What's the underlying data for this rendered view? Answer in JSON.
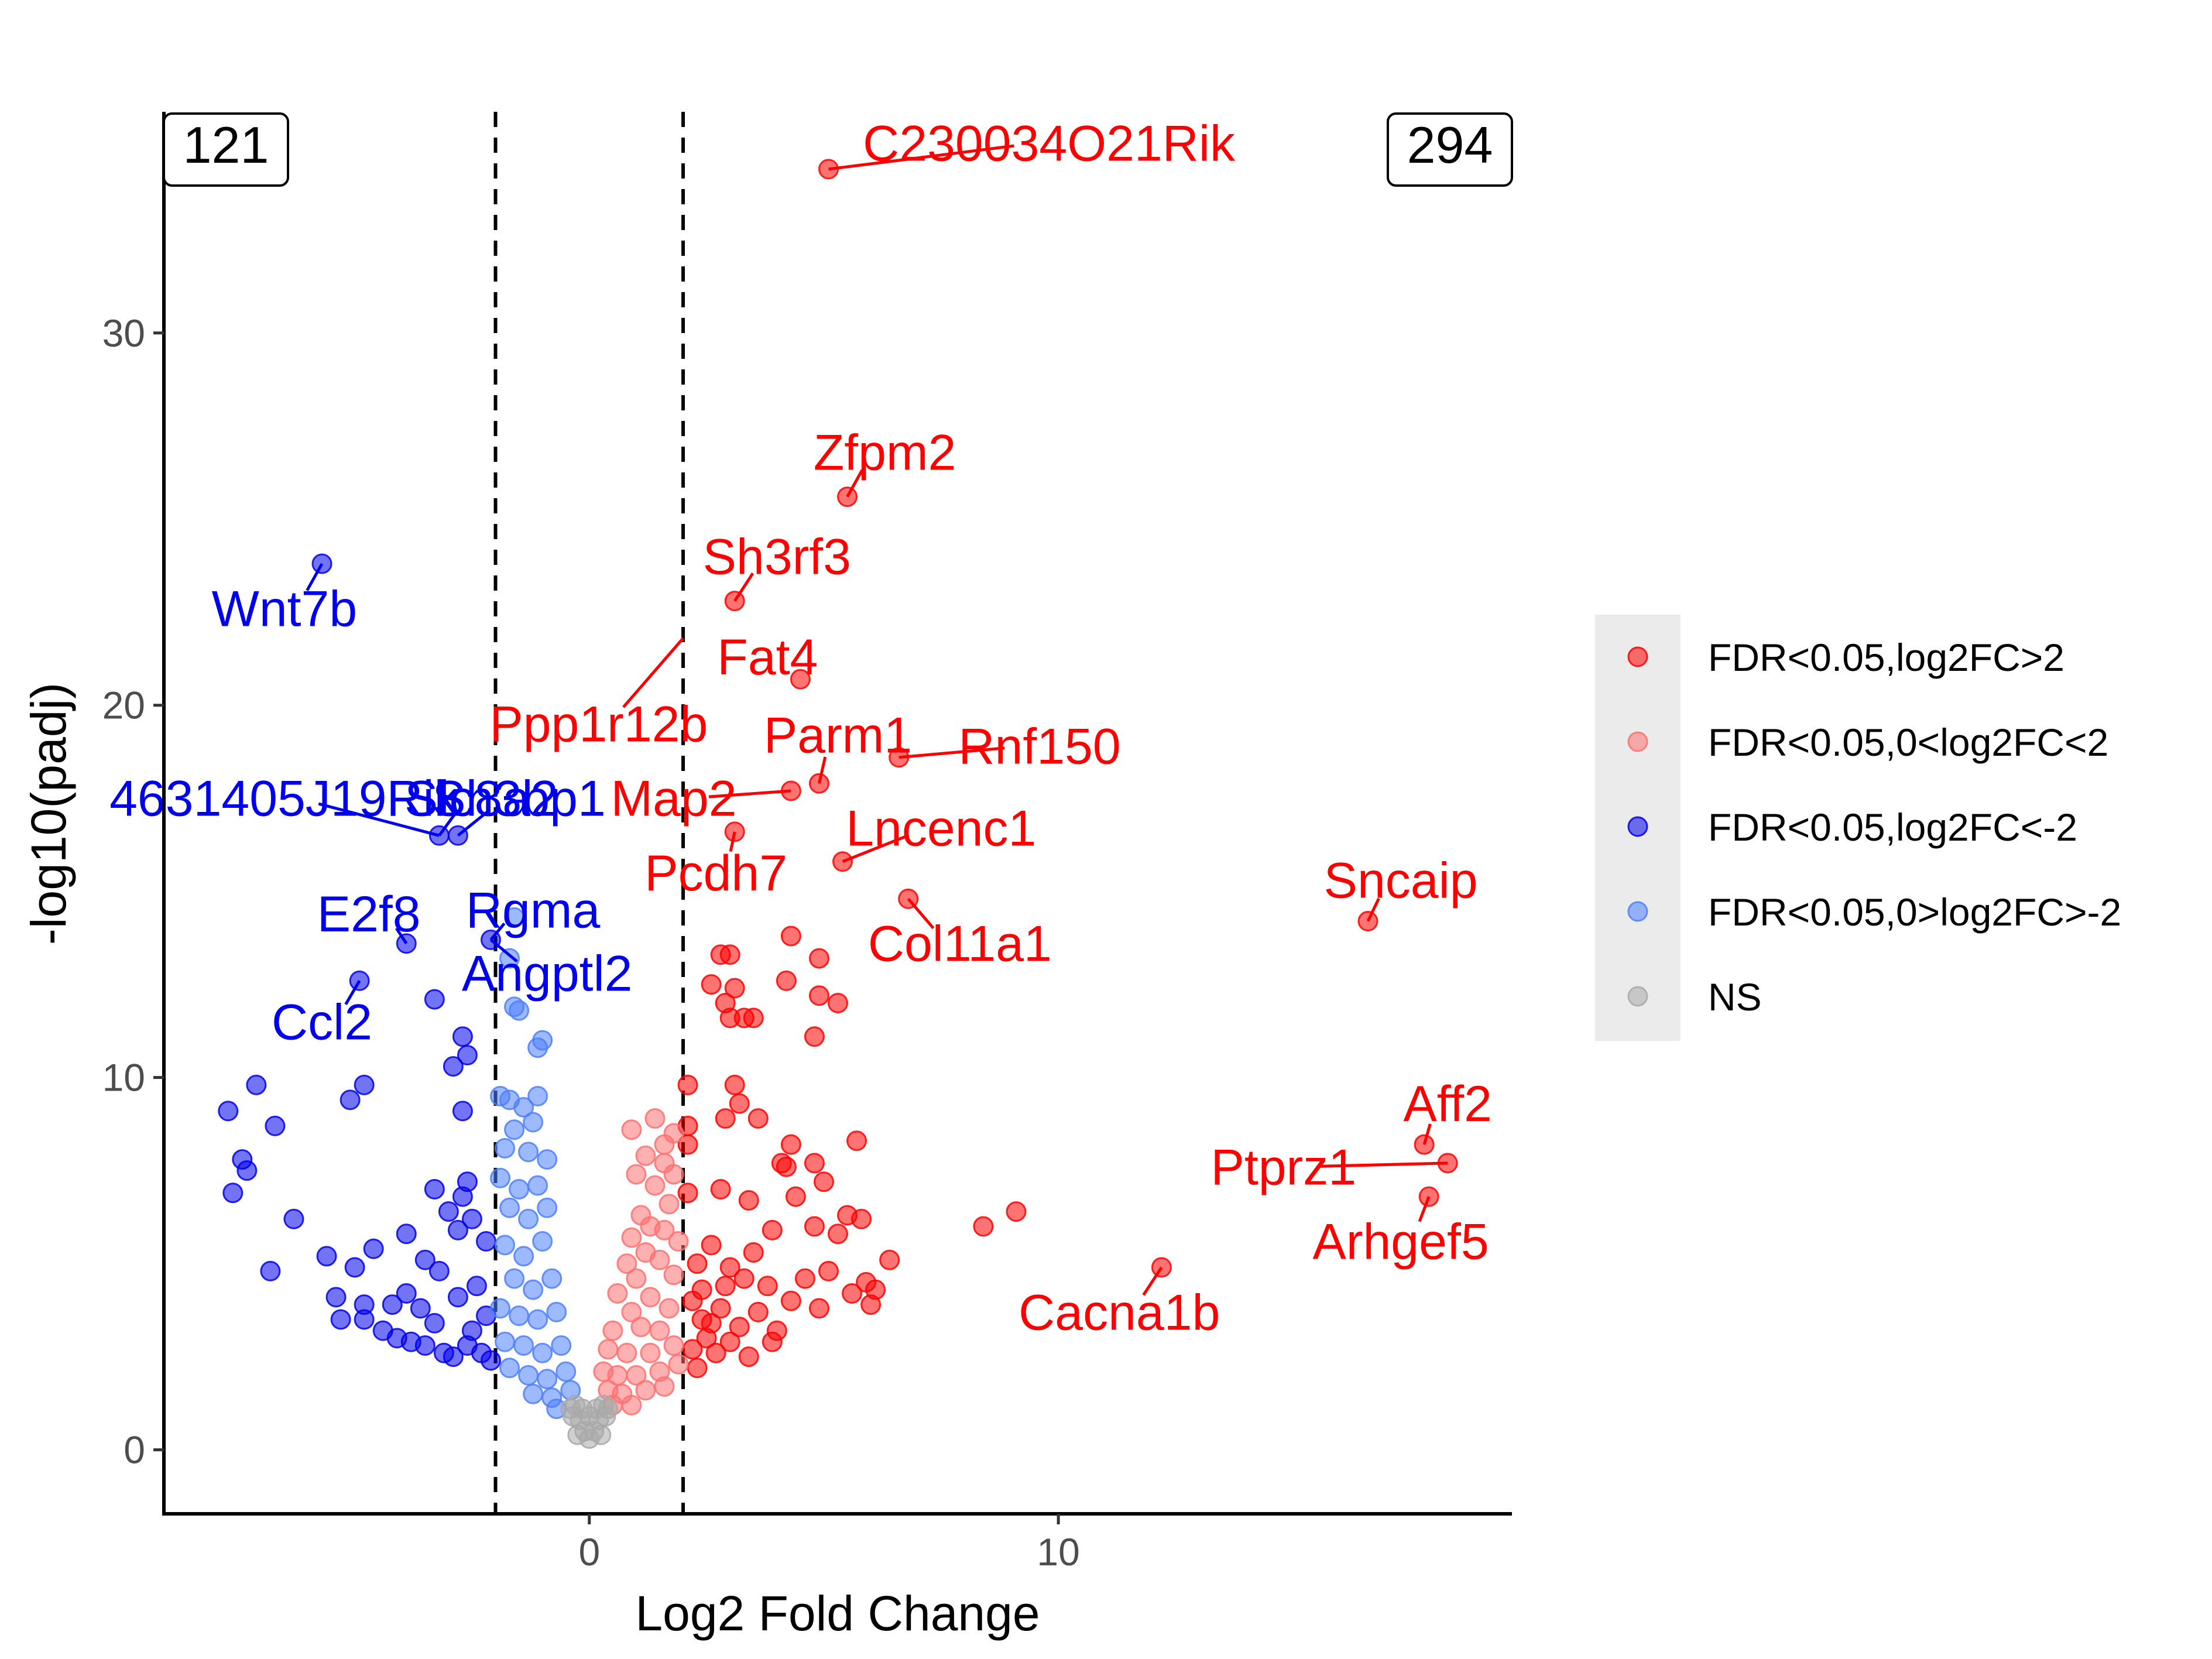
{
  "chart_data": {
    "type": "scatter",
    "xlabel": "Log2 Fold Change",
    "ylabel": "-log10(padj)",
    "xlim": [
      -9.07,
      19.67
    ],
    "ylim": [
      -1.72,
      35.94
    ],
    "x_ticks": [
      0,
      10
    ],
    "y_ticks": [
      0,
      10,
      20,
      30
    ],
    "threshold_lines_x": [
      -2,
      2
    ],
    "count_labels": {
      "down": "121",
      "up": "294"
    },
    "legend": {
      "position": "right",
      "items": [
        {
          "label": "FDR<0.05,log2FC>2",
          "color": "#ff0000"
        },
        {
          "label": "FDR<0.05,0<log2FC<2",
          "color": "#ff7070"
        },
        {
          "label": "FDR<0.05,log2FC<-2",
          "color": "#0000ee"
        },
        {
          "label": "FDR<0.05,0>log2FC>-2",
          "color": "#4d7fff"
        },
        {
          "label": "NS",
          "color": "#a9a9a9"
        }
      ]
    },
    "series": [
      {
        "name": "FDR<0.05,log2FC>2",
        "color": "#ff0000",
        "points": [
          [
            5.1,
            34.4
          ],
          [
            5.5,
            25.6
          ],
          [
            3.1,
            22.8
          ],
          [
            4.5,
            20.7
          ],
          [
            4.9,
            17.9
          ],
          [
            4.3,
            17.7
          ],
          [
            6.6,
            18.6
          ],
          [
            3.1,
            16.6
          ],
          [
            5.4,
            15.8
          ],
          [
            6.8,
            14.8
          ],
          [
            16.6,
            14.2
          ],
          [
            4.3,
            13.8
          ],
          [
            2.8,
            13.3
          ],
          [
            3.0,
            13.3
          ],
          [
            4.9,
            13.2
          ],
          [
            2.6,
            12.5
          ],
          [
            3.1,
            12.4
          ],
          [
            4.2,
            12.6
          ],
          [
            4.9,
            12.2
          ],
          [
            5.3,
            12.0
          ],
          [
            2.9,
            12.0
          ],
          [
            3.0,
            11.6
          ],
          [
            3.3,
            11.6
          ],
          [
            3.5,
            11.6
          ],
          [
            4.8,
            11.1
          ],
          [
            2.1,
            9.8
          ],
          [
            3.1,
            9.8
          ],
          [
            3.2,
            9.3
          ],
          [
            2.9,
            8.9
          ],
          [
            3.6,
            8.9
          ],
          [
            2.1,
            8.7
          ],
          [
            2.1,
            8.2
          ],
          [
            4.3,
            8.2
          ],
          [
            5.7,
            8.3
          ],
          [
            4.1,
            7.7
          ],
          [
            4.2,
            7.6
          ],
          [
            4.8,
            7.7
          ],
          [
            5.0,
            7.2
          ],
          [
            2.8,
            7.0
          ],
          [
            2.1,
            6.9
          ],
          [
            3.4,
            6.7
          ],
          [
            4.4,
            6.8
          ],
          [
            8.4,
            6.0
          ],
          [
            9.1,
            6.4
          ],
          [
            17.8,
            8.2
          ],
          [
            18.3,
            7.7
          ],
          [
            17.9,
            6.8
          ],
          [
            12.2,
            4.9
          ],
          [
            5.5,
            6.3
          ],
          [
            5.8,
            6.2
          ],
          [
            6.4,
            5.1
          ],
          [
            5.3,
            5.8
          ],
          [
            4.8,
            6.0
          ],
          [
            3.9,
            5.9
          ],
          [
            3.5,
            5.3
          ],
          [
            3.0,
            4.9
          ],
          [
            2.6,
            5.5
          ],
          [
            2.3,
            5.0
          ],
          [
            3.8,
            4.4
          ],
          [
            4.6,
            4.6
          ],
          [
            5.1,
            4.8
          ],
          [
            5.9,
            4.5
          ],
          [
            6.1,
            4.3
          ],
          [
            5.6,
            4.2
          ],
          [
            6.0,
            3.9
          ],
          [
            4.9,
            3.8
          ],
          [
            4.3,
            4.0
          ],
          [
            3.6,
            3.7
          ],
          [
            2.8,
            3.8
          ],
          [
            2.4,
            3.5
          ],
          [
            3.2,
            3.3
          ],
          [
            4.0,
            3.2
          ],
          [
            2.5,
            3.0
          ],
          [
            3.0,
            2.9
          ],
          [
            2.2,
            2.7
          ],
          [
            2.7,
            2.6
          ],
          [
            2.3,
            2.2
          ],
          [
            3.4,
            2.5
          ],
          [
            3.9,
            2.9
          ],
          [
            2.9,
            4.4
          ],
          [
            2.4,
            4.3
          ],
          [
            3.3,
            4.6
          ],
          [
            2.2,
            4.0
          ],
          [
            2.6,
            3.4
          ]
        ]
      },
      {
        "name": "FDR<0.05,0<log2FC<2",
        "color": "#ff7070",
        "points": [
          [
            1.4,
            8.9
          ],
          [
            1.8,
            8.5
          ],
          [
            1.6,
            7.7
          ],
          [
            1.8,
            7.4
          ],
          [
            1.0,
            7.4
          ],
          [
            1.4,
            7.1
          ],
          [
            1.7,
            6.6
          ],
          [
            1.1,
            6.3
          ],
          [
            1.3,
            6.0
          ],
          [
            1.6,
            5.9
          ],
          [
            0.9,
            5.7
          ],
          [
            1.2,
            5.3
          ],
          [
            1.5,
            5.1
          ],
          [
            0.8,
            5.0
          ],
          [
            1.0,
            4.6
          ],
          [
            1.8,
            4.7
          ],
          [
            0.6,
            4.2
          ],
          [
            1.3,
            4.1
          ],
          [
            0.9,
            3.7
          ],
          [
            1.7,
            3.8
          ],
          [
            0.5,
            3.2
          ],
          [
            1.1,
            3.3
          ],
          [
            1.5,
            3.2
          ],
          [
            0.4,
            2.7
          ],
          [
            0.8,
            2.6
          ],
          [
            1.3,
            2.6
          ],
          [
            1.8,
            2.8
          ],
          [
            0.3,
            2.1
          ],
          [
            0.6,
            2.0
          ],
          [
            1.0,
            2.0
          ],
          [
            1.5,
            2.1
          ],
          [
            1.9,
            2.3
          ],
          [
            0.4,
            1.6
          ],
          [
            0.7,
            1.5
          ],
          [
            1.2,
            1.6
          ],
          [
            1.6,
            1.7
          ],
          [
            0.5,
            1.2
          ],
          [
            0.9,
            1.2
          ],
          [
            1.9,
            5.6
          ],
          [
            1.2,
            7.9
          ],
          [
            0.9,
            8.6
          ],
          [
            1.6,
            8.2
          ]
        ]
      },
      {
        "name": "FDR<0.05,log2FC<-2",
        "color": "#0000ee",
        "points": [
          [
            -5.7,
            23.8
          ],
          [
            -3.2,
            16.5
          ],
          [
            -2.8,
            16.5
          ],
          [
            -3.9,
            13.6
          ],
          [
            -2.1,
            13.7
          ],
          [
            -4.9,
            12.6
          ],
          [
            -3.3,
            12.1
          ],
          [
            -2.7,
            11.1
          ],
          [
            -2.6,
            10.6
          ],
          [
            -2.9,
            10.3
          ],
          [
            -7.7,
            9.1
          ],
          [
            -7.1,
            9.8
          ],
          [
            -6.7,
            8.7
          ],
          [
            -5.1,
            9.4
          ],
          [
            -4.8,
            9.8
          ],
          [
            -2.7,
            9.1
          ],
          [
            -7.4,
            7.8
          ],
          [
            -7.3,
            7.5
          ],
          [
            -7.6,
            6.9
          ],
          [
            -6.3,
            6.2
          ],
          [
            -6.8,
            4.8
          ],
          [
            -5.6,
            5.2
          ],
          [
            -5.0,
            4.9
          ],
          [
            -5.4,
            4.1
          ],
          [
            -4.6,
            5.4
          ],
          [
            -3.9,
            5.8
          ],
          [
            -3.5,
            5.1
          ],
          [
            -3.2,
            4.8
          ],
          [
            -2.8,
            5.9
          ],
          [
            -2.5,
            6.2
          ],
          [
            -2.2,
            5.6
          ],
          [
            -2.7,
            6.8
          ],
          [
            -3.3,
            7.0
          ],
          [
            -2.6,
            7.2
          ],
          [
            -3.0,
            6.4
          ],
          [
            -5.3,
            3.5
          ],
          [
            -4.8,
            3.5
          ],
          [
            -4.8,
            3.9
          ],
          [
            -4.4,
            3.2
          ],
          [
            -4.1,
            3.0
          ],
          [
            -3.8,
            2.9
          ],
          [
            -3.6,
            3.8
          ],
          [
            -3.3,
            3.4
          ],
          [
            -3.1,
            2.6
          ],
          [
            -2.9,
            2.5
          ],
          [
            -2.6,
            2.8
          ],
          [
            -2.3,
            2.6
          ],
          [
            -2.1,
            2.4
          ],
          [
            -3.5,
            2.8
          ],
          [
            -2.4,
            4.4
          ],
          [
            -2.2,
            3.6
          ],
          [
            -2.8,
            4.1
          ],
          [
            -3.9,
            4.2
          ],
          [
            -4.2,
            3.9
          ],
          [
            -2.5,
            3.2
          ]
        ]
      },
      {
        "name": "FDR<0.05,0>log2FC>-2",
        "color": "#4d7fff",
        "points": [
          [
            -1.6,
            14.3
          ],
          [
            -1.7,
            13.2
          ],
          [
            -1.6,
            11.9
          ],
          [
            -1.5,
            11.8
          ],
          [
            -1.0,
            11.0
          ],
          [
            -1.1,
            10.8
          ],
          [
            -1.9,
            9.5
          ],
          [
            -1.7,
            9.4
          ],
          [
            -1.1,
            9.5
          ],
          [
            -1.2,
            8.8
          ],
          [
            -1.8,
            8.1
          ],
          [
            -1.3,
            8.0
          ],
          [
            -1.9,
            7.3
          ],
          [
            -1.5,
            7.0
          ],
          [
            -1.1,
            7.1
          ],
          [
            -1.7,
            6.5
          ],
          [
            -1.3,
            6.2
          ],
          [
            -0.9,
            6.5
          ],
          [
            -1.8,
            5.5
          ],
          [
            -1.4,
            5.2
          ],
          [
            -1.0,
            5.6
          ],
          [
            -1.6,
            4.6
          ],
          [
            -1.2,
            4.3
          ],
          [
            -0.8,
            4.6
          ],
          [
            -1.9,
            3.8
          ],
          [
            -1.5,
            3.6
          ],
          [
            -1.1,
            3.5
          ],
          [
            -0.7,
            3.7
          ],
          [
            -1.8,
            2.9
          ],
          [
            -1.4,
            2.8
          ],
          [
            -1.0,
            2.6
          ],
          [
            -0.6,
            2.8
          ],
          [
            -1.7,
            2.2
          ],
          [
            -1.3,
            2.0
          ],
          [
            -0.9,
            1.9
          ],
          [
            -0.5,
            2.1
          ],
          [
            -1.2,
            1.5
          ],
          [
            -0.8,
            1.4
          ],
          [
            -0.4,
            1.6
          ],
          [
            -0.7,
            1.1
          ],
          [
            -1.6,
            8.6
          ],
          [
            -0.9,
            7.8
          ],
          [
            -1.4,
            9.2
          ]
        ]
      },
      {
        "name": "NS",
        "color": "#a9a9a9",
        "points": [
          [
            -0.3,
            1.2
          ],
          [
            -0.2,
            0.8
          ],
          [
            0.0,
            0.3
          ],
          [
            0.2,
            0.8
          ],
          [
            0.3,
            1.2
          ],
          [
            -0.4,
            1.1
          ],
          [
            0.4,
            1.1
          ],
          [
            -0.1,
            0.5
          ],
          [
            0.1,
            0.5
          ],
          [
            -0.25,
            0.4
          ],
          [
            0.25,
            0.4
          ],
          [
            0.0,
            0.9
          ],
          [
            -0.15,
            1.1
          ],
          [
            0.15,
            1.1
          ],
          [
            -0.35,
            0.9
          ],
          [
            0.35,
            0.9
          ]
        ]
      }
    ],
    "annotations": [
      {
        "label": "C230034O21Rik",
        "color": "#ff0000",
        "x": 5.1,
        "y": 34.4,
        "lx": 9.8,
        "ly": 35.1
      },
      {
        "label": "Zfpm2",
        "color": "#ff0000",
        "x": 5.5,
        "y": 25.6,
        "lx": 6.3,
        "ly": 26.8
      },
      {
        "label": "Sh3rf3",
        "color": "#ff0000",
        "x": 3.1,
        "y": 22.8,
        "lx": 4.0,
        "ly": 24.0
      },
      {
        "label": "Fat4",
        "color": "#ff0000",
        "x": 4.5,
        "y": 20.7,
        "lx": 3.8,
        "ly": 21.3
      },
      {
        "label": "Ppp1r12b",
        "color": "#ff0000",
        "x": 2.0,
        "y": 21.8,
        "lx": 0.2,
        "ly": 19.5
      },
      {
        "label": "Parm1",
        "color": "#ff0000",
        "x": 4.9,
        "y": 17.9,
        "lx": 5.3,
        "ly": 19.2
      },
      {
        "label": "Rnf150",
        "color": "#ff0000",
        "x": 6.6,
        "y": 18.6,
        "lx": 9.6,
        "ly": 18.9
      },
      {
        "label": "Map2",
        "color": "#ff0000",
        "x": 4.3,
        "y": 17.7,
        "lx": 1.8,
        "ly": 17.5
      },
      {
        "label": "Lncenc1",
        "color": "#ff0000",
        "x": 5.4,
        "y": 15.8,
        "lx": 7.5,
        "ly": 16.7
      },
      {
        "label": "Pcdh7",
        "color": "#ff0000",
        "x": 3.1,
        "y": 16.6,
        "lx": 2.7,
        "ly": 15.5
      },
      {
        "label": "Col11a1",
        "color": "#ff0000",
        "x": 6.8,
        "y": 14.8,
        "lx": 7.9,
        "ly": 13.6
      },
      {
        "label": "Sncaip",
        "color": "#ff0000",
        "x": 16.6,
        "y": 14.2,
        "lx": 17.3,
        "ly": 15.3
      },
      {
        "label": "Aff2",
        "color": "#ff0000",
        "x": 17.8,
        "y": 8.2,
        "lx": 18.3,
        "ly": 9.3
      },
      {
        "label": "Ptprz1",
        "color": "#ff0000",
        "x": 18.3,
        "y": 7.7,
        "lx": 14.8,
        "ly": 7.6
      },
      {
        "label": "Arhgef5",
        "color": "#ff0000",
        "x": 17.9,
        "y": 6.8,
        "lx": 17.3,
        "ly": 5.6
      },
      {
        "label": "Cacna1b",
        "color": "#ff0000",
        "x": 12.2,
        "y": 4.9,
        "lx": 11.3,
        "ly": 3.7
      },
      {
        "label": "Wnt7b",
        "color": "#0000ee",
        "x": -5.7,
        "y": 23.8,
        "lx": -6.5,
        "ly": 22.6
      },
      {
        "label": "4631405J19Rik",
        "color": "#0000ee",
        "x": -3.2,
        "y": 16.5,
        "lx": -6.5,
        "ly": 17.5
      },
      {
        "label": "Slc8a2",
        "color": "#0000ee",
        "x": -3.2,
        "y": 16.5,
        "lx": -2.3,
        "ly": 17.5
      },
      {
        "label": "Sh3bp1",
        "color": "#0000ee",
        "x": -2.8,
        "y": 16.5,
        "lx": -1.5,
        "ly": 17.5
      },
      {
        "label": "E2f8",
        "color": "#0000ee",
        "x": -3.9,
        "y": 13.6,
        "lx": -4.7,
        "ly": 14.4
      },
      {
        "label": "Rgma",
        "color": "#0000ee",
        "x": -2.1,
        "y": 13.7,
        "lx": -1.2,
        "ly": 14.5
      },
      {
        "label": "Ccl2",
        "color": "#0000ee",
        "x": -4.9,
        "y": 12.6,
        "lx": -5.7,
        "ly": 11.5
      },
      {
        "label": "Angptl2",
        "color": "#0000ee",
        "x": -2.1,
        "y": 13.7,
        "lx": -0.9,
        "ly": 12.8
      }
    ]
  }
}
